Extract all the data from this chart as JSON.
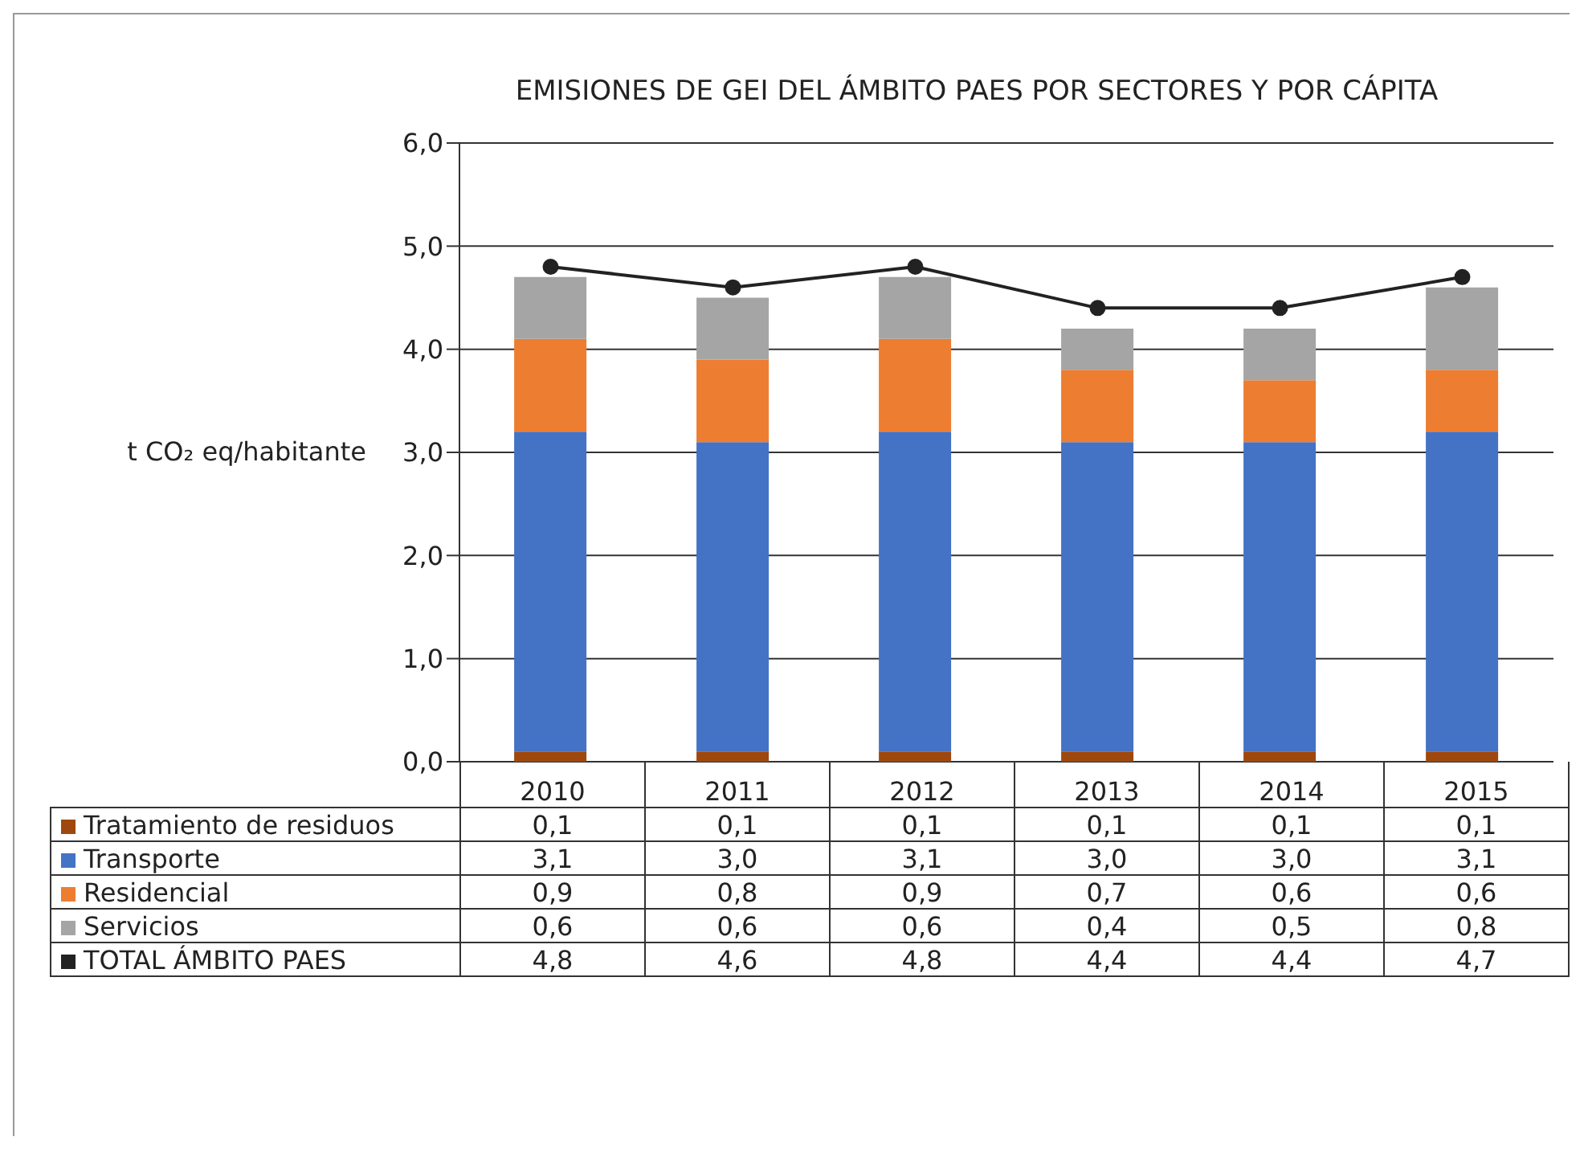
{
  "chart_data": {
    "type": "bar",
    "stacked": true,
    "title": "EMISIONES DE GEI DEL ÁMBITO PAES POR SECTORES Y POR CÁPITA",
    "ylabel": "t CO₂ eq/habitante",
    "categories": [
      "2010",
      "2011",
      "2012",
      "2013",
      "2014",
      "2015"
    ],
    "series": [
      {
        "name": "Tratamiento de residuos",
        "color": "#9e480e",
        "values": [
          0.1,
          0.1,
          0.1,
          0.1,
          0.1,
          0.1
        ],
        "value_labels": [
          "0,1",
          "0,1",
          "0,1",
          "0,1",
          "0,1",
          "0,1"
        ]
      },
      {
        "name": "Transporte",
        "color": "#4472c4",
        "values": [
          3.1,
          3.0,
          3.1,
          3.0,
          3.0,
          3.1
        ],
        "value_labels": [
          "3,1",
          "3,0",
          "3,1",
          "3,0",
          "3,0",
          "3,1"
        ]
      },
      {
        "name": "Residencial",
        "color": "#ed7d31",
        "values": [
          0.9,
          0.8,
          0.9,
          0.7,
          0.6,
          0.6
        ],
        "value_labels": [
          "0,9",
          "0,8",
          "0,9",
          "0,7",
          "0,6",
          "0,6"
        ]
      },
      {
        "name": "Servicios",
        "color": "#a5a5a5",
        "values": [
          0.6,
          0.6,
          0.6,
          0.4,
          0.5,
          0.8
        ],
        "value_labels": [
          "0,6",
          "0,6",
          "0,6",
          "0,4",
          "0,5",
          "0,8"
        ]
      },
      {
        "name": "TOTAL ÁMBITO PAES",
        "type": "line",
        "color": "#222222",
        "marker": "circle",
        "values": [
          4.8,
          4.6,
          4.8,
          4.4,
          4.4,
          4.7
        ],
        "value_labels": [
          "4,8",
          "4,6",
          "4,8",
          "4,4",
          "4,4",
          "4,7"
        ]
      }
    ],
    "ylim": [
      0,
      6
    ],
    "yticks": [
      {
        "value": 0,
        "label": "0,0"
      },
      {
        "value": 1,
        "label": "1,0"
      },
      {
        "value": 2,
        "label": "2,0"
      },
      {
        "value": 3,
        "label": "3,0"
      },
      {
        "value": 4,
        "label": "4,0"
      },
      {
        "value": 5,
        "label": "5,0"
      },
      {
        "value": 6,
        "label": "6,0"
      }
    ],
    "grid": "y",
    "legend": "bottom left"
  }
}
